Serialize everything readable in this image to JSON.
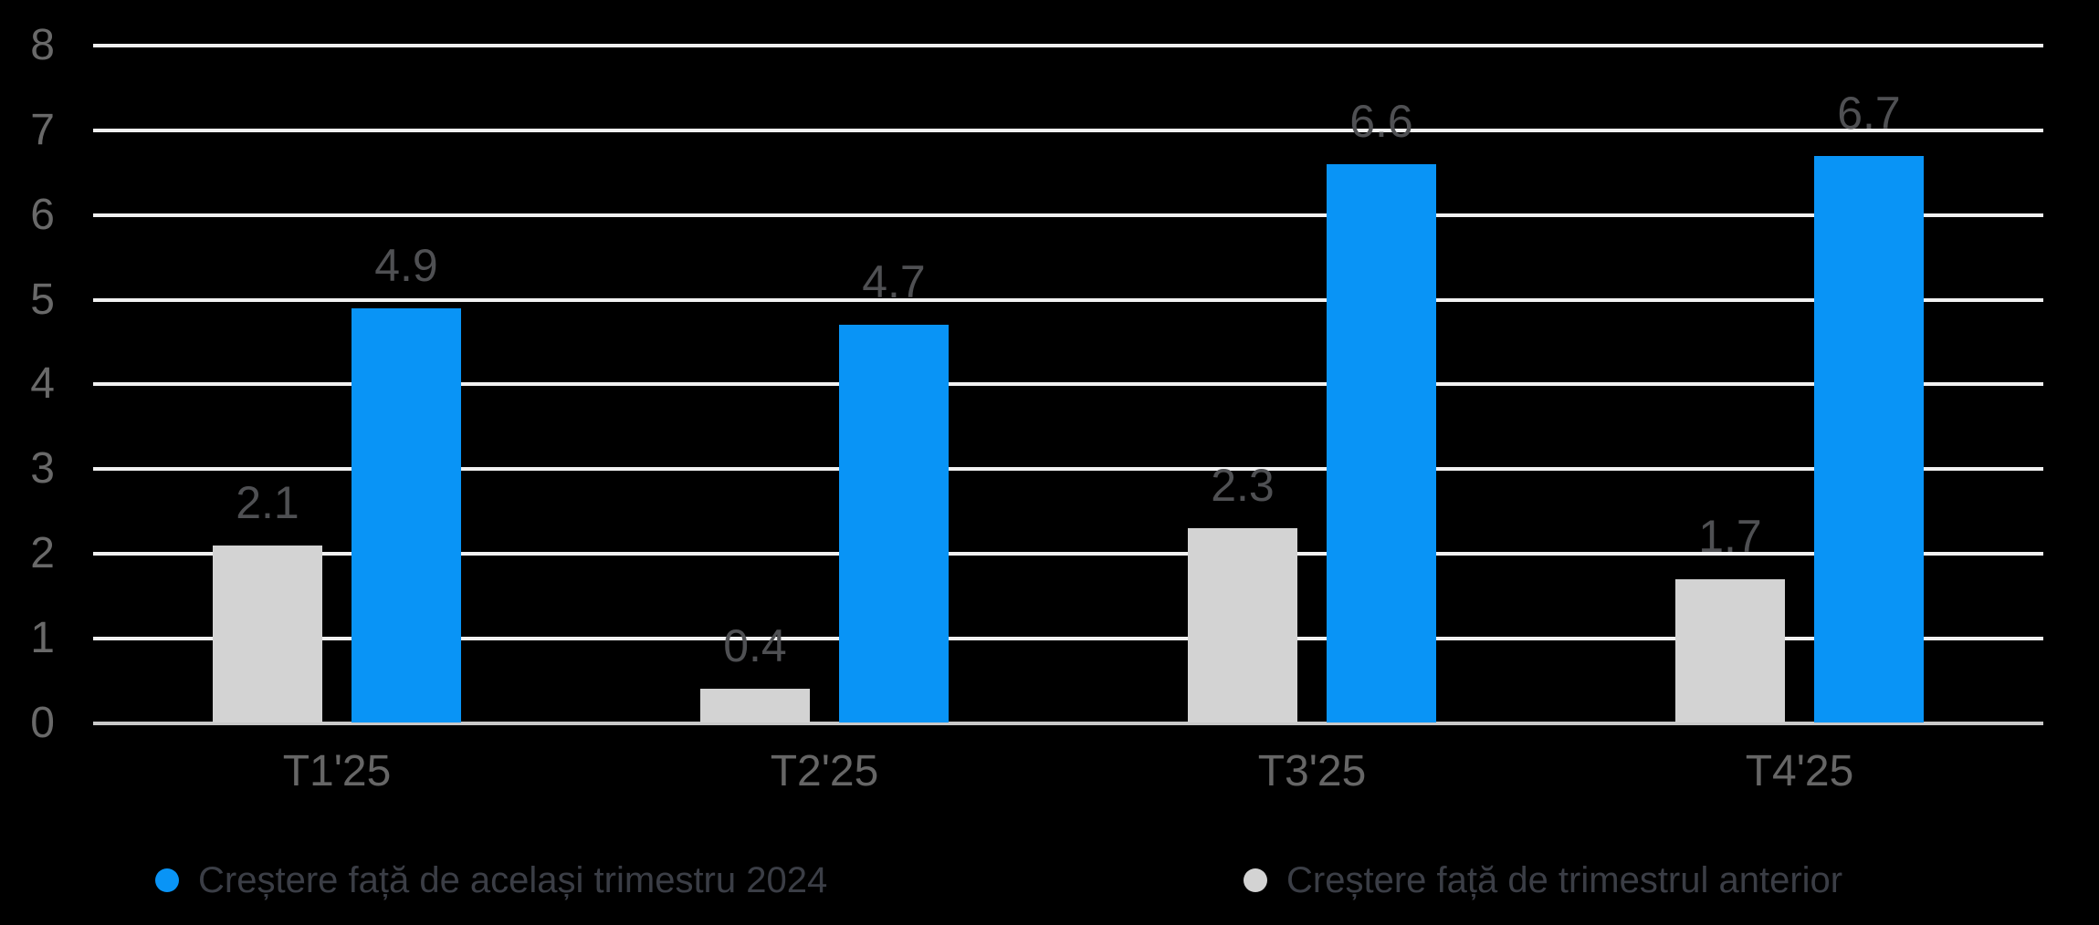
{
  "colors": {
    "background": "#000000",
    "gridline": "#f1f1f1",
    "axis_line": "#c9c9c9",
    "ytick_label": "#696969",
    "xtick_label": "#666666",
    "value_label": "#4f5053",
    "legend_text": "#3b3e46"
  },
  "chart_data": {
    "type": "bar",
    "title": "",
    "xlabel": "",
    "ylabel": "",
    "categories": [
      "T1'25",
      "T2'25",
      "T3'25",
      "T4'25"
    ],
    "series": [
      {
        "name": "Creștere față de același trimestru 2024",
        "color": "#0994f6",
        "values": [
          4.9,
          4.7,
          6.6,
          6.7
        ],
        "value_labels": [
          "4.9",
          "4.7",
          "6.6",
          "6.7"
        ]
      },
      {
        "name": "Creștere față de trimestrul anterior",
        "color": "#d3d3d3",
        "values": [
          2.1,
          0.4,
          2.3,
          1.7
        ],
        "value_labels": [
          "2.1",
          "0.4",
          "2.3",
          "1.7"
        ]
      }
    ],
    "ylim": [
      0,
      8
    ],
    "yticks": [
      0,
      1,
      2,
      3,
      4,
      5,
      6,
      7,
      8
    ],
    "grid": "horizontal",
    "legend_position": "bottom",
    "group_order_left_to_right": [
      1,
      0
    ]
  }
}
